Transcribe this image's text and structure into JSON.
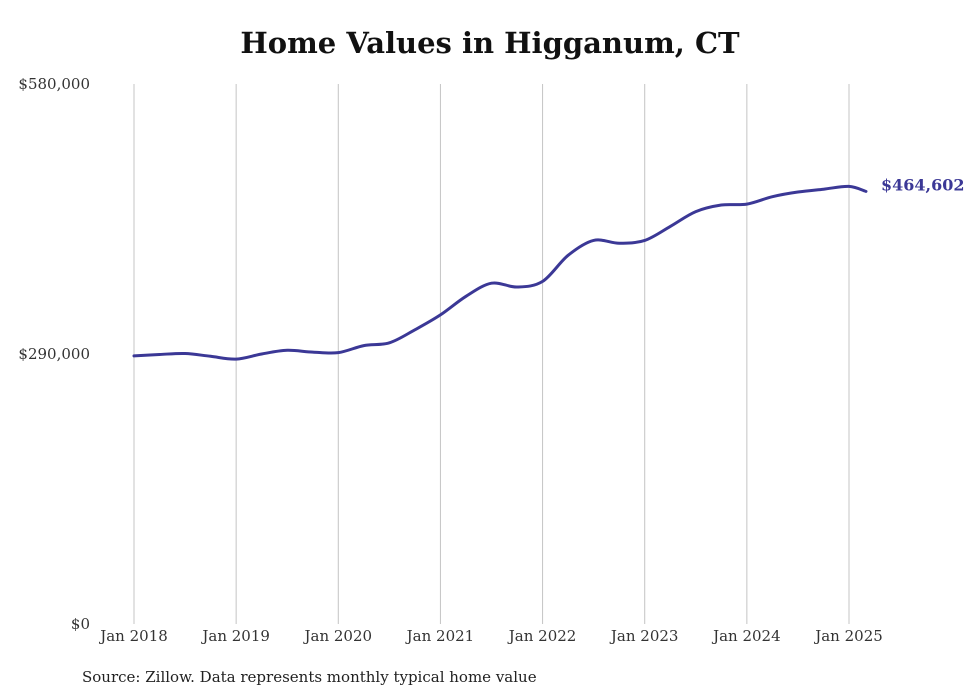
{
  "chart_data": {
    "type": "line",
    "title": "Home Values in Higganum, CT",
    "xlabel": "",
    "ylabel": "",
    "ylim": [
      0,
      580000
    ],
    "grid": "vertical",
    "y_ticks": [
      {
        "value": 0,
        "label": "$0"
      },
      {
        "value": 290000,
        "label": "$290,000"
      },
      {
        "value": 580000,
        "label": "$580,000"
      }
    ],
    "x_ticks": [
      {
        "date": "2018-01",
        "label": "Jan 2018"
      },
      {
        "date": "2019-01",
        "label": "Jan 2019"
      },
      {
        "date": "2020-01",
        "label": "Jan 2020"
      },
      {
        "date": "2021-01",
        "label": "Jan 2021"
      },
      {
        "date": "2022-01",
        "label": "Jan 2022"
      },
      {
        "date": "2023-01",
        "label": "Jan 2023"
      },
      {
        "date": "2024-01",
        "label": "Jan 2024"
      },
      {
        "date": "2025-01",
        "label": "Jan 2025"
      }
    ],
    "series": [
      {
        "color": "#3b3896",
        "end_label": "$464,602",
        "points": [
          [
            "2018-01",
            288000
          ],
          [
            "2018-04",
            289500
          ],
          [
            "2018-07",
            290500
          ],
          [
            "2018-10",
            287500
          ],
          [
            "2019-01",
            284500
          ],
          [
            "2019-04",
            290000
          ],
          [
            "2019-07",
            294000
          ],
          [
            "2019-10",
            292000
          ],
          [
            "2020-01",
            291500
          ],
          [
            "2020-04",
            299000
          ],
          [
            "2020-07",
            302000
          ],
          [
            "2020-10",
            316000
          ],
          [
            "2021-01",
            332000
          ],
          [
            "2021-04",
            352000
          ],
          [
            "2021-07",
            366000
          ],
          [
            "2021-10",
            362000
          ],
          [
            "2022-01",
            368000
          ],
          [
            "2022-04",
            396000
          ],
          [
            "2022-07",
            412000
          ],
          [
            "2022-10",
            409000
          ],
          [
            "2023-01",
            412000
          ],
          [
            "2023-04",
            427000
          ],
          [
            "2023-07",
            443000
          ],
          [
            "2023-10",
            450000
          ],
          [
            "2024-01",
            451000
          ],
          [
            "2024-04",
            459000
          ],
          [
            "2024-07",
            464000
          ],
          [
            "2024-10",
            467000
          ],
          [
            "2025-01",
            470000
          ],
          [
            "2025-03",
            464602
          ]
        ]
      }
    ]
  },
  "source_note": "Source: Zillow. Data represents monthly typical home value"
}
